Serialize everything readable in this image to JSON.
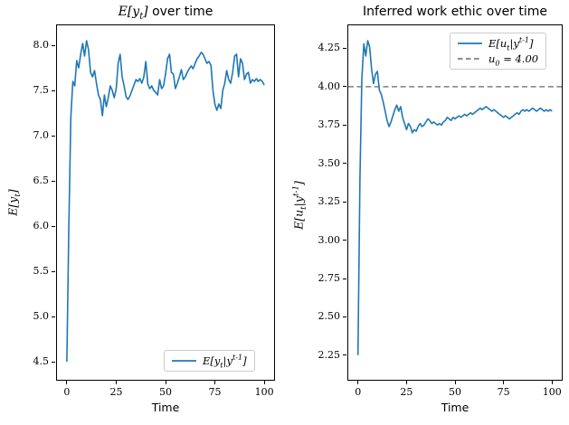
{
  "figure": {
    "background": "#ffffff",
    "text_color": "#000000"
  },
  "chart_data": [
    {
      "type": "line",
      "title": "$E[y_t]$ over time",
      "xlabel": "Time",
      "ylabel": "$E[y_t]$",
      "xlim": [
        -5,
        105
      ],
      "ylim": [
        4.3,
        8.22
      ],
      "xticks": [
        "0",
        "25",
        "50",
        "75",
        "100"
      ],
      "yticks": [
        "4.5",
        "5.0",
        "5.5",
        "6.0",
        "6.5",
        "7.0",
        "7.5",
        "8.0"
      ],
      "grid": false,
      "legend_position": "lower right",
      "legend": [
        {
          "label": "$E[y_t|y^{t-1}]$",
          "color": "#1f77b4",
          "dash": "solid"
        }
      ],
      "x_range": [
        0,
        100
      ],
      "x_step": 1,
      "series": [
        {
          "name": "$E[y_t|y^{t-1}]$",
          "color": "#1f77b4",
          "values": [
            4.5,
            6.0,
            7.2,
            7.6,
            7.55,
            7.83,
            7.75,
            7.9,
            8.02,
            7.88,
            8.05,
            7.95,
            7.7,
            7.65,
            7.72,
            7.58,
            7.45,
            7.4,
            7.22,
            7.45,
            7.32,
            7.42,
            7.55,
            7.5,
            7.42,
            7.52,
            7.8,
            7.9,
            7.65,
            7.55,
            7.43,
            7.4,
            7.44,
            7.5,
            7.56,
            7.62,
            7.6,
            7.63,
            7.58,
            7.65,
            7.82,
            7.57,
            7.52,
            7.55,
            7.5,
            7.48,
            7.45,
            7.62,
            7.52,
            7.55,
            7.68,
            7.85,
            7.9,
            7.7,
            7.68,
            7.52,
            7.58,
            7.65,
            7.73,
            7.62,
            7.65,
            7.7,
            7.74,
            7.77,
            7.74,
            7.8,
            7.85,
            7.88,
            7.92,
            7.9,
            7.85,
            7.8,
            7.82,
            7.78,
            7.5,
            7.35,
            7.28,
            7.35,
            7.3,
            7.5,
            7.58,
            7.72,
            7.62,
            7.58,
            7.7,
            7.88,
            7.9,
            7.65,
            7.85,
            7.8,
            7.62,
            7.68,
            7.7,
            7.58,
            7.62,
            7.6,
            7.63,
            7.6,
            7.62,
            7.6,
            7.56
          ]
        }
      ]
    },
    {
      "type": "line",
      "title": "Inferred work ethic over time",
      "xlabel": "Time",
      "ylabel": "$E[u_t|y^{t-1}]$",
      "xlim": [
        -5,
        105
      ],
      "ylim": [
        2.09,
        4.4
      ],
      "xticks": [
        "0",
        "25",
        "50",
        "75",
        "100"
      ],
      "yticks": [
        "2.25",
        "2.50",
        "2.75",
        "3.00",
        "3.25",
        "3.50",
        "3.75",
        "4.00",
        "4.25"
      ],
      "grid": false,
      "legend_position": "upper right",
      "legend": [
        {
          "label": "$E[u_t|y^{t-1}]$",
          "color": "#1f77b4",
          "dash": "solid"
        },
        {
          "label": "$u_0 = 4.00$",
          "color": "#7f7f7f",
          "dash": "dashed"
        }
      ],
      "reference_line": {
        "label": "$u_0 = 4.00$",
        "value": 4.0,
        "color": "#7f7f7f",
        "dash": "dashed"
      },
      "x_range": [
        0,
        100
      ],
      "x_step": 1,
      "series": [
        {
          "name": "$E[u_t|y^{t-1}]$",
          "color": "#1f77b4",
          "values": [
            2.25,
            3.4,
            4.05,
            4.28,
            4.2,
            4.3,
            4.26,
            4.12,
            4.02,
            4.08,
            4.1,
            3.98,
            3.95,
            3.9,
            3.84,
            3.78,
            3.74,
            3.77,
            3.81,
            3.85,
            3.88,
            3.84,
            3.87,
            3.8,
            3.76,
            3.72,
            3.76,
            3.74,
            3.7,
            3.72,
            3.71,
            3.74,
            3.76,
            3.74,
            3.75,
            3.77,
            3.79,
            3.78,
            3.76,
            3.77,
            3.76,
            3.75,
            3.76,
            3.75,
            3.77,
            3.78,
            3.8,
            3.79,
            3.78,
            3.8,
            3.79,
            3.8,
            3.81,
            3.8,
            3.81,
            3.82,
            3.81,
            3.82,
            3.83,
            3.82,
            3.83,
            3.84,
            3.85,
            3.86,
            3.85,
            3.86,
            3.87,
            3.86,
            3.85,
            3.84,
            3.85,
            3.84,
            3.83,
            3.82,
            3.81,
            3.8,
            3.81,
            3.8,
            3.79,
            3.8,
            3.81,
            3.82,
            3.83,
            3.82,
            3.84,
            3.85,
            3.84,
            3.85,
            3.84,
            3.85,
            3.86,
            3.85,
            3.84,
            3.85,
            3.86,
            3.85,
            3.84,
            3.85,
            3.84,
            3.85,
            3.84
          ]
        }
      ]
    }
  ]
}
